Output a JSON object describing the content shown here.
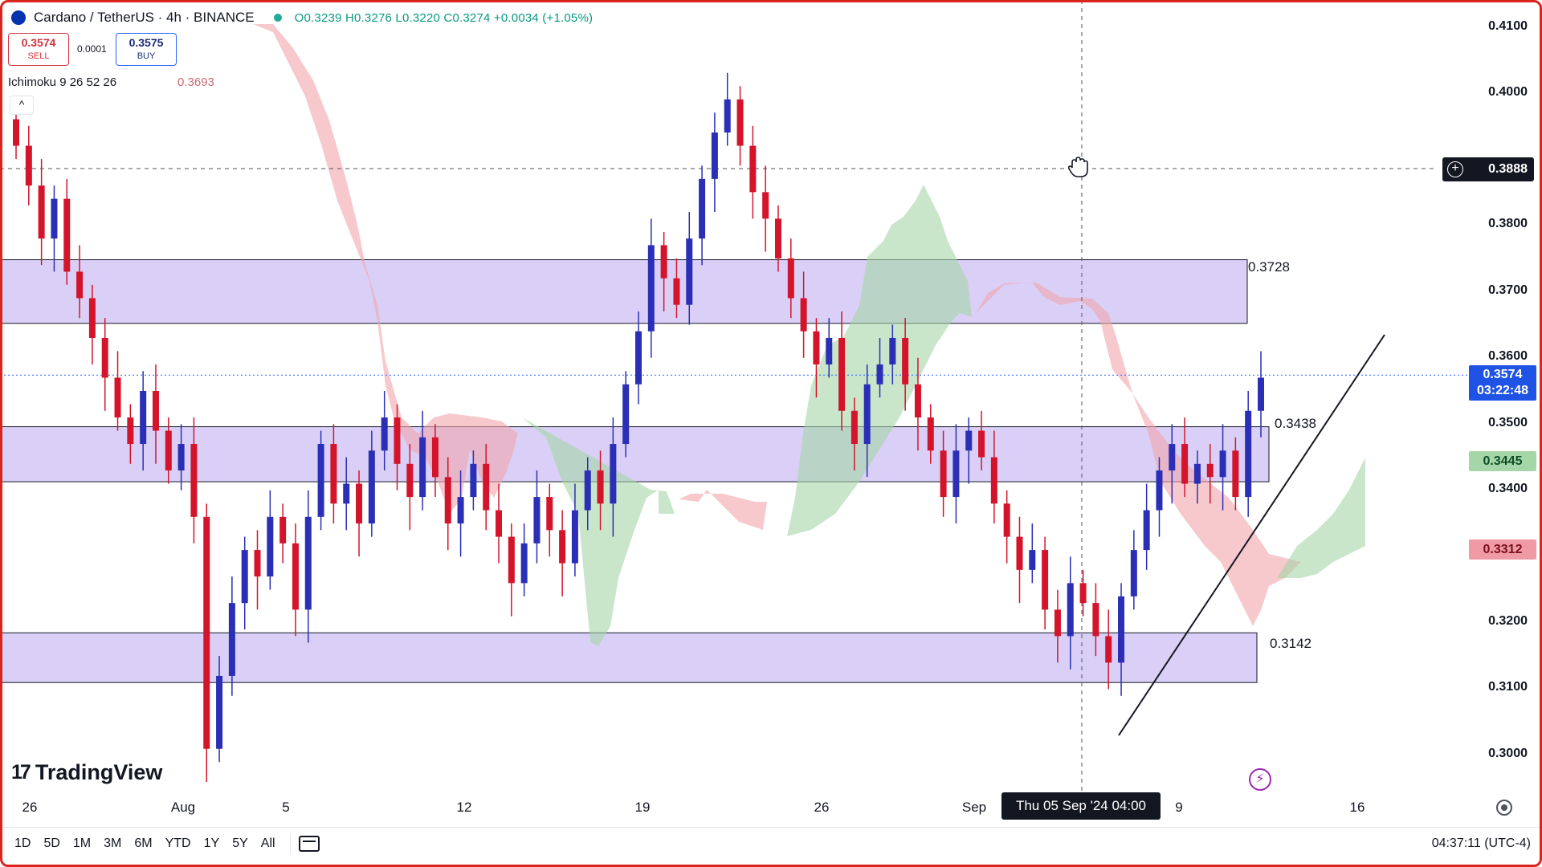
{
  "header": {
    "symbol": "Cardano / TetherUS · 4h · BINANCE",
    "ohlc": "O0.3239 H0.3276 L0.3220 C0.3274 +0.0034 (+1.05%)"
  },
  "trade": {
    "sell_price": "0.3574",
    "sell_label": "SELL",
    "spread": "0.0001",
    "buy_price": "0.3575",
    "buy_label": "BUY"
  },
  "indicator": {
    "name": "Ichimoku 9 26 52 26",
    "value": "0.3693",
    "collapse_glyph": "^"
  },
  "price_axis": {
    "labels": [
      "0.4100",
      "0.4000",
      "0.3800",
      "0.3700",
      "0.3600",
      "0.3500",
      "0.3400",
      "0.3200",
      "0.3100",
      "0.3000"
    ],
    "crosshair_value": "0.3888",
    "current_price": "0.3574",
    "countdown": "03:22:48",
    "senkou_a": "0.3445",
    "senkou_b": "0.3312"
  },
  "zones": [
    {
      "label": "0.3728",
      "top": 0.3748,
      "bottom": 0.3652,
      "color": "#d1c4f5"
    },
    {
      "label": "0.3438",
      "top": 0.3496,
      "bottom": 0.3413,
      "color": "#d1c4f5"
    },
    {
      "label": "0.3142",
      "top": 0.3185,
      "bottom": 0.311,
      "color": "#d1c4f5"
    }
  ],
  "time_axis": {
    "labels": [
      "26",
      "Aug",
      "5",
      "12",
      "19",
      "26",
      "Sep",
      "9",
      "16"
    ],
    "crosshair_time": "Thu 05 Sep '24  04:00"
  },
  "bottom_bar": {
    "ranges": [
      "1D",
      "5D",
      "1M",
      "3M",
      "6M",
      "YTD",
      "1Y",
      "5Y",
      "All"
    ],
    "clock": "04:37:11 (UTC-4)"
  },
  "branding": {
    "logo_text": "TradingView",
    "logo_mark": "17"
  },
  "colors": {
    "up": "#2a2fb5",
    "down": "#d4142a",
    "cloud_bull": "#a5d6a7",
    "cloud_bear": "#f2a5ab",
    "zone": "#d1c4f5"
  },
  "chart_data": {
    "type": "candlestick",
    "symbol": "ADA/USDT",
    "interval": "4h",
    "price_range": [
      0.295,
      0.415
    ],
    "grid": false,
    "candles_close": [
      0.392,
      0.386,
      0.378,
      0.384,
      0.373,
      0.369,
      0.363,
      0.357,
      0.351,
      0.347,
      0.355,
      0.349,
      0.343,
      0.347,
      0.336,
      0.301,
      0.312,
      0.323,
      0.331,
      0.327,
      0.336,
      0.332,
      0.322,
      0.336,
      0.347,
      0.338,
      0.341,
      0.335,
      0.346,
      0.351,
      0.344,
      0.339,
      0.348,
      0.342,
      0.335,
      0.339,
      0.344,
      0.337,
      0.333,
      0.326,
      0.332,
      0.339,
      0.334,
      0.329,
      0.337,
      0.343,
      0.338,
      0.347,
      0.356,
      0.364,
      0.377,
      0.372,
      0.368,
      0.378,
      0.387,
      0.394,
      0.399,
      0.392,
      0.385,
      0.381,
      0.375,
      0.369,
      0.364,
      0.359,
      0.363,
      0.352,
      0.347,
      0.356,
      0.359,
      0.363,
      0.356,
      0.351,
      0.346,
      0.339,
      0.346,
      0.349,
      0.345,
      0.338,
      0.333,
      0.328,
      0.331,
      0.322,
      0.318,
      0.326,
      0.323,
      0.318,
      0.314,
      0.324,
      0.331,
      0.337,
      0.343,
      0.347,
      0.341,
      0.344,
      0.342,
      0.346,
      0.339,
      0.352,
      0.357
    ]
  }
}
